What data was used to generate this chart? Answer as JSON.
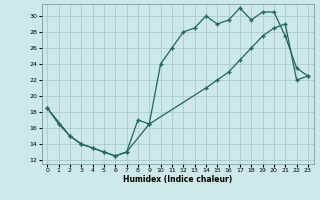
{
  "xlabel": "Humidex (Indice chaleur)",
  "ylabel": "",
  "bg_color": "#cce8e8",
  "grid_color": "#aacccc",
  "line_color": "#226655",
  "xlim": [
    -0.5,
    23.5
  ],
  "ylim": [
    11.5,
    31.5
  ],
  "xticks": [
    0,
    1,
    2,
    3,
    4,
    5,
    6,
    7,
    8,
    9,
    10,
    11,
    12,
    13,
    14,
    15,
    16,
    17,
    18,
    19,
    20,
    21,
    22,
    23
  ],
  "yticks": [
    12,
    14,
    16,
    18,
    20,
    22,
    24,
    26,
    28,
    30
  ],
  "curve1_x": [
    0,
    1,
    2,
    3,
    4,
    5,
    6,
    7,
    8,
    9,
    10,
    11,
    12,
    13,
    14,
    15,
    16,
    17,
    18,
    19,
    20,
    21,
    22,
    23
  ],
  "curve1_y": [
    18.5,
    16.5,
    15.0,
    14.0,
    13.5,
    13.0,
    12.5,
    13.0,
    17.0,
    16.5,
    24.0,
    26.0,
    28.0,
    28.5,
    30.0,
    29.0,
    29.5,
    31.0,
    29.5,
    30.5,
    30.5,
    27.5,
    23.5,
    22.5
  ],
  "curve2_x": [
    0,
    2,
    3,
    4,
    5,
    6,
    7,
    9,
    14,
    15,
    16,
    17,
    18,
    19,
    20,
    21,
    22,
    23
  ],
  "curve2_y": [
    18.5,
    15.0,
    14.0,
    13.5,
    13.0,
    12.5,
    13.0,
    16.5,
    21.0,
    22.0,
    23.0,
    24.5,
    26.0,
    27.5,
    28.5,
    29.0,
    22.0,
    22.5
  ]
}
